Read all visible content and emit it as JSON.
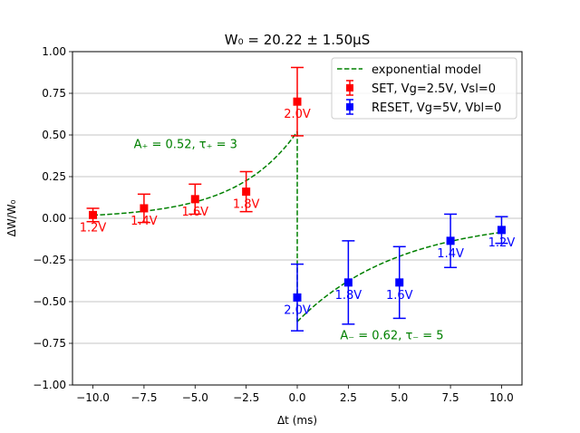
{
  "chart_data": {
    "type": "scatter",
    "title": "W₀ = 20.22 ± 1.50μS",
    "xlabel": "Δt (ms)",
    "ylabel": "ΔW/W₀",
    "xlim": [
      -11,
      11
    ],
    "ylim": [
      -1.0,
      1.0
    ],
    "xticks": [
      -10,
      -7.5,
      -5,
      -2.5,
      0,
      2.5,
      5,
      7.5,
      10
    ],
    "xtick_labels": [
      "−10.0",
      "−7.5",
      "−5.0",
      "−2.5",
      "0.0",
      "2.5",
      "5.0",
      "7.5",
      "10.0"
    ],
    "yticks": [
      -1.0,
      -0.75,
      -0.5,
      -0.25,
      0.0,
      0.25,
      0.5,
      0.75,
      1.0
    ],
    "ytick_labels": [
      "−1.00",
      "−0.75",
      "−0.50",
      "−0.25",
      "0.00",
      "0.25",
      "0.50",
      "0.75",
      "1.00"
    ],
    "grid": "horizontal",
    "legend_position": "top-right",
    "series": [
      {
        "name": "SET, Vg=2.5V, Vsl=0",
        "color": "#ff0000",
        "marker": "square",
        "points": [
          {
            "x": -10,
            "y": 0.02,
            "err": 0.04,
            "label": "1.2V"
          },
          {
            "x": -7.5,
            "y": 0.06,
            "err": 0.085,
            "label": "1.4V"
          },
          {
            "x": -5,
            "y": 0.115,
            "err": 0.09,
            "label": "1.6V"
          },
          {
            "x": -2.5,
            "y": 0.16,
            "err": 0.12,
            "label": "1.8V"
          },
          {
            "x": 0,
            "y": 0.7,
            "err": 0.205,
            "label": "2.0V"
          }
        ]
      },
      {
        "name": "RESET, Vg=5V, Vbl=0",
        "color": "#0000ff",
        "marker": "square",
        "points": [
          {
            "x": 0,
            "y": -0.475,
            "err": 0.2,
            "label": "2.0V"
          },
          {
            "x": 2.5,
            "y": -0.385,
            "err": 0.25,
            "label": "1.8V"
          },
          {
            "x": 5,
            "y": -0.385,
            "err": 0.215,
            "label": "1.6V"
          },
          {
            "x": 7.5,
            "y": -0.135,
            "err": 0.16,
            "label": "1.4V"
          },
          {
            "x": 10,
            "y": -0.07,
            "err": 0.08,
            "label": "1.2V"
          }
        ]
      }
    ],
    "model": {
      "name": "exponential model",
      "color": "#008000",
      "style": "dashed",
      "A_plus": 0.52,
      "tau_plus": 3,
      "A_minus": 0.62,
      "tau_minus": 5
    },
    "annotations": [
      {
        "text": "A₊ = 0.52, τ₊ = 3",
        "x": -8.0,
        "y": 0.42,
        "color": "#008000"
      },
      {
        "text": "A₋ = 0.62, τ₋ = 5",
        "x": 2.1,
        "y": -0.725,
        "color": "#008000"
      }
    ]
  }
}
